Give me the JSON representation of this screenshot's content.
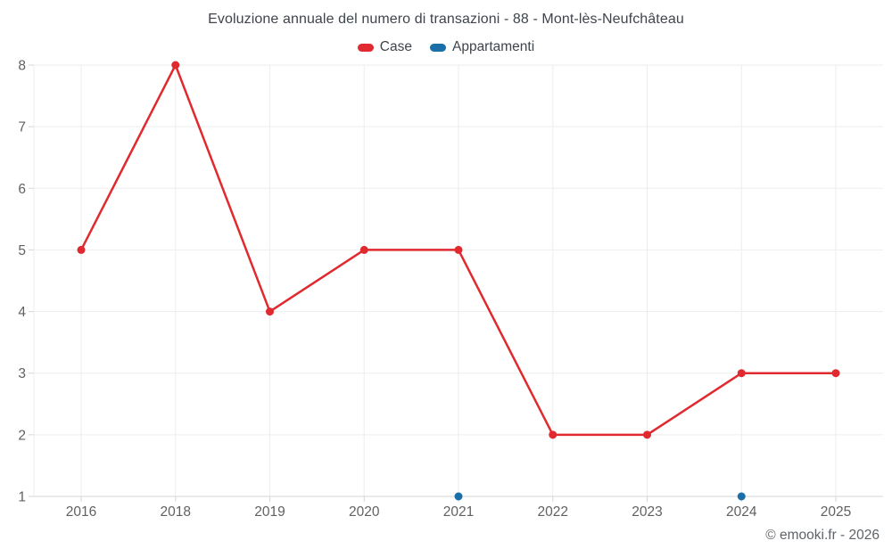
{
  "chart_data": {
    "type": "line",
    "title": "Evoluzione annuale del numero di transazioni - 88 - Mont-lès-Neufchâteau",
    "categories": [
      "2016",
      "2018",
      "2019",
      "2020",
      "2021",
      "2022",
      "2023",
      "2024",
      "2025"
    ],
    "series": [
      {
        "name": "Case",
        "color": "#e02a2f",
        "values": [
          5,
          8,
          4,
          5,
          5,
          2,
          2,
          3,
          3
        ]
      },
      {
        "name": "Appartamenti",
        "color": "#1a6fa8",
        "values": [
          null,
          null,
          null,
          null,
          1,
          null,
          null,
          1,
          null
        ]
      }
    ],
    "ylim": [
      1,
      8
    ],
    "yticks": [
      1,
      2,
      3,
      4,
      5,
      6,
      7,
      8
    ],
    "grid": true,
    "legend_position": "top"
  },
  "footer": {
    "credit": "© emooki.fr - 2026"
  },
  "colors": {
    "background": "#ffffff",
    "gridline": "#ededed",
    "axis_line": "#d6d6d6",
    "tick_label": "#616161",
    "title_text": "#3f444d",
    "footer_text": "#5f6368"
  }
}
